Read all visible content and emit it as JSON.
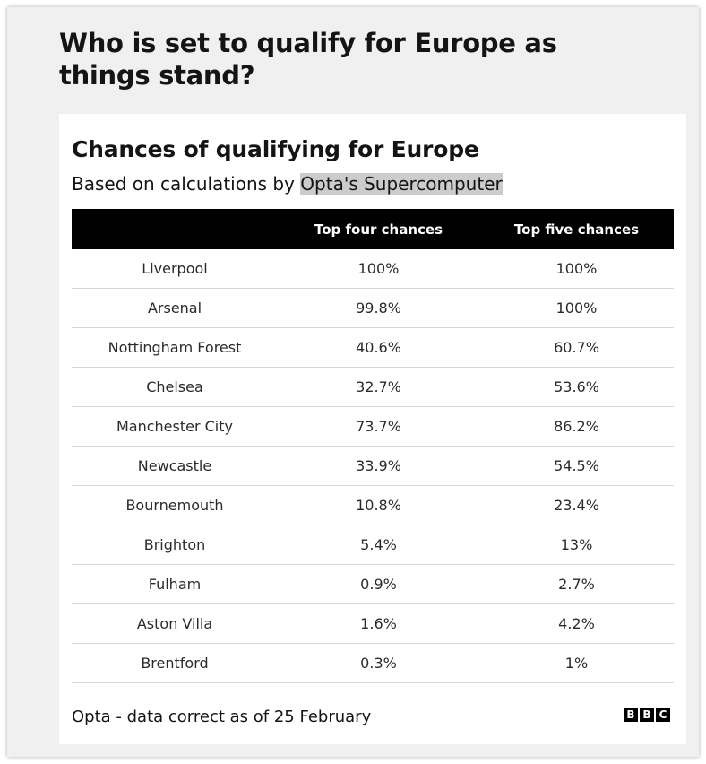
{
  "heading": "Who is set to qualify for Europe as things stand?",
  "chart_data": {
    "type": "table",
    "title": "Chances of qualifying for Europe",
    "subtitle_prefix": "Based on calculations by ",
    "subtitle_highlight": "Opta's Supercomputer",
    "columns": [
      "",
      "Top four chances",
      "Top five chances"
    ],
    "rows": [
      [
        "Liverpool",
        "100%",
        "100%"
      ],
      [
        "Arsenal",
        "99.8%",
        "100%"
      ],
      [
        "Nottingham Forest",
        "40.6%",
        "60.7%"
      ],
      [
        "Chelsea",
        "32.7%",
        "53.6%"
      ],
      [
        "Manchester City",
        "73.7%",
        "86.2%"
      ],
      [
        "Newcastle",
        "33.9%",
        "54.5%"
      ],
      [
        "Bournemouth",
        "10.8%",
        "23.4%"
      ],
      [
        "Brighton",
        "5.4%",
        "13%"
      ],
      [
        "Fulham",
        "0.9%",
        "2.7%"
      ],
      [
        "Aston Villa",
        "1.6%",
        "4.2%"
      ],
      [
        "Brentford",
        "0.3%",
        "1%"
      ]
    ]
  },
  "footer": {
    "source": "Opta - data correct as of 25 February",
    "logo_letters": [
      "B",
      "B",
      "C"
    ]
  }
}
